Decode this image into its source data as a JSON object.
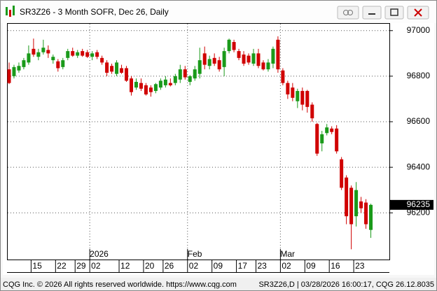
{
  "chart_data": {
    "type": "candlestick",
    "title": "SR3Z26 - 3 Month SOFR, Dec 26, Daily",
    "footer_left": "CQG Inc. © 2026 All rights reserved worldwide. https://www.cqg.com",
    "footer_right": "SR3Z26,D | 03/28/2026 16:00:17, CQG 26.12.8035",
    "categories": [
      null,
      null,
      null,
      null,
      null,
      "15",
      null,
      null,
      null,
      null,
      "22",
      null,
      null,
      null,
      "29",
      null,
      null,
      "02",
      null,
      null,
      null,
      null,
      null,
      "12",
      null,
      null,
      null,
      null,
      "20",
      null,
      null,
      null,
      "26",
      null,
      null,
      null,
      null,
      "02",
      null,
      null,
      null,
      null,
      "09",
      null,
      null,
      null,
      null,
      "17",
      null,
      null,
      null,
      "23",
      null,
      null,
      null,
      null,
      "02",
      null,
      null,
      null,
      null,
      "09",
      null,
      null,
      null,
      null,
      "16",
      null,
      null,
      null,
      null,
      "23",
      null,
      null,
      null
    ],
    "month_labels": [
      null,
      null,
      null,
      null,
      null,
      null,
      null,
      null,
      null,
      null,
      null,
      null,
      null,
      null,
      null,
      null,
      null,
      "2026",
      null,
      null,
      null,
      null,
      null,
      null,
      null,
      null,
      null,
      null,
      null,
      null,
      null,
      null,
      null,
      null,
      null,
      null,
      null,
      "Feb",
      null,
      null,
      null,
      null,
      null,
      null,
      null,
      null,
      null,
      null,
      null,
      null,
      null,
      null,
      null,
      null,
      null,
      null,
      "Mar",
      null,
      null,
      null,
      null,
      null,
      null,
      null,
      null,
      null,
      null,
      null,
      null,
      null,
      null,
      null,
      null,
      null,
      null
    ],
    "open": [
      96830,
      96800,
      96825,
      96840,
      96860,
      96920,
      96885,
      96905,
      96915,
      96870,
      96865,
      96840,
      96880,
      96910,
      96890,
      96910,
      96905,
      96885,
      96905,
      96880,
      96860,
      96845,
      96810,
      96835,
      96835,
      96790,
      96750,
      96770,
      96760,
      96750,
      96735,
      96750,
      96760,
      96770,
      96770,
      96785,
      96830,
      96775,
      96790,
      96810,
      96900,
      96845,
      96880,
      96870,
      96840,
      96910,
      96950,
      96910,
      96895,
      96890,
      96855,
      96900,
      96860,
      96830,
      96855,
      96960,
      96825,
      96770,
      96750,
      96690,
      96735,
      96735,
      96675,
      96590,
      96505,
      96550,
      96570,
      96570,
      96435,
      96355,
      96310,
      96185,
      96250,
      96245,
      96125
    ],
    "high": [
      96860,
      96850,
      96860,
      96880,
      96935,
      96965,
      96920,
      96960,
      96935,
      96895,
      96875,
      96880,
      96920,
      96925,
      96915,
      96920,
      96915,
      96910,
      96915,
      96890,
      96870,
      96855,
      96870,
      96850,
      96845,
      96800,
      96790,
      96790,
      96770,
      96760,
      96770,
      96790,
      96800,
      96790,
      96810,
      96850,
      96845,
      96805,
      96845,
      96925,
      96930,
      96890,
      96900,
      96885,
      96925,
      96965,
      96960,
      96920,
      96910,
      96900,
      96920,
      96920,
      96870,
      96875,
      96930,
      96975,
      96835,
      96780,
      96770,
      96745,
      96750,
      96740,
      96685,
      96595,
      96560,
      96590,
      96580,
      96585,
      96445,
      96365,
      96320,
      96335,
      96270,
      96260,
      96240
    ],
    "low": [
      96765,
      96790,
      96815,
      96830,
      96850,
      96885,
      96870,
      96895,
      96880,
      96855,
      96820,
      96830,
      96870,
      96885,
      96880,
      96885,
      96880,
      96870,
      96875,
      96850,
      96800,
      96810,
      96800,
      96810,
      96775,
      96715,
      96740,
      96735,
      96715,
      96710,
      96725,
      96740,
      96750,
      96755,
      96760,
      96770,
      96785,
      96760,
      96780,
      96790,
      96830,
      96830,
      96845,
      96820,
      96800,
      96900,
      96905,
      96870,
      96845,
      96850,
      96845,
      96835,
      96825,
      96820,
      96835,
      96815,
      96760,
      96700,
      96690,
      96660,
      96650,
      96640,
      96600,
      96450,
      96470,
      96540,
      96545,
      96460,
      96300,
      96150,
      96040,
      96140,
      96200,
      96130,
      96090
    ],
    "close": [
      96770,
      96840,
      96845,
      96870,
      96900,
      96895,
      96905,
      96925,
      96900,
      96885,
      96835,
      96870,
      96910,
      96890,
      96905,
      96890,
      96885,
      96900,
      96885,
      96860,
      96815,
      96820,
      96860,
      96815,
      96780,
      96730,
      96775,
      96745,
      96720,
      96730,
      96765,
      96780,
      96785,
      96760,
      96800,
      96830,
      96795,
      96800,
      96830,
      96870,
      96850,
      96875,
      96855,
      96830,
      96910,
      96960,
      96915,
      96880,
      96855,
      96860,
      96900,
      96845,
      96830,
      96860,
      96920,
      96830,
      96770,
      96720,
      96705,
      96735,
      96675,
      96665,
      96615,
      96460,
      96545,
      96575,
      96555,
      96470,
      96310,
      96185,
      96150,
      96300,
      96220,
      96150,
      96235
    ],
    "up_color": "#1a9a1a",
    "down_color": "#d00000",
    "ylim": [
      95995,
      97030
    ],
    "yticks": [
      96200,
      96400,
      96600,
      96800,
      97000
    ],
    "grid": true,
    "last_value": 96235
  }
}
